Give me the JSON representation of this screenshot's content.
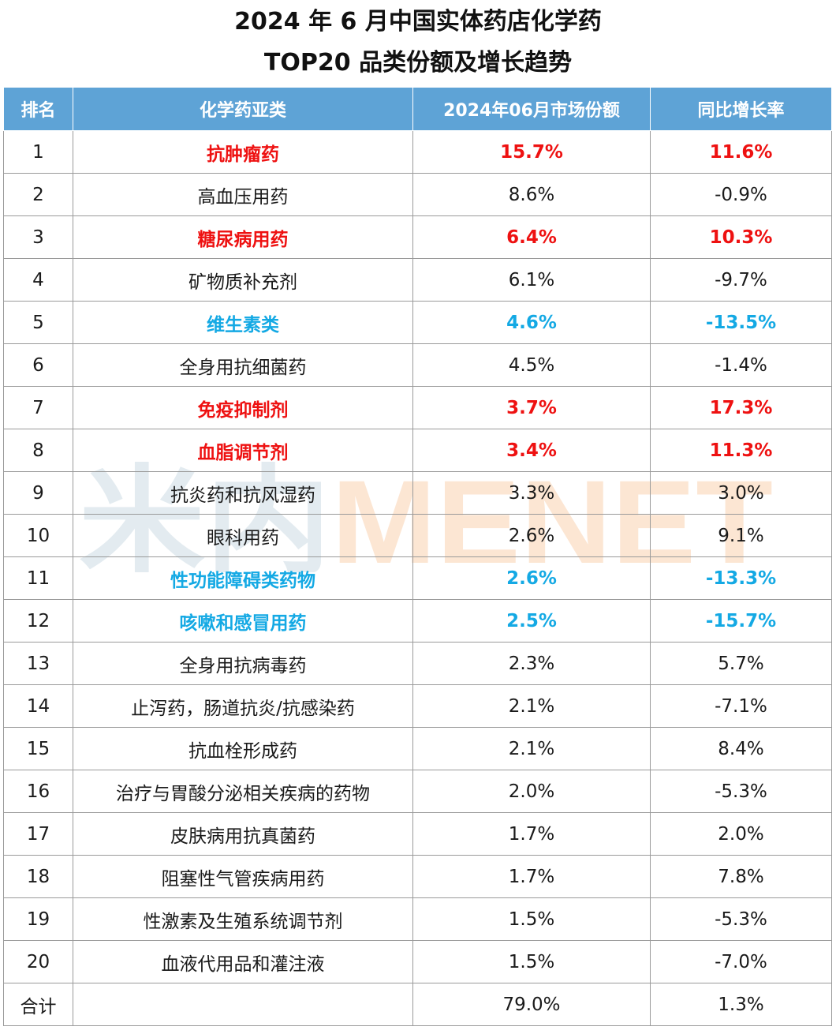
{
  "title_line1": "2024 年 6 月中国实体药店化学药",
  "title_line2": "TOP20 品类份额及增长趋势",
  "watermark_text": "米内MENET",
  "colors": {
    "header_bg": "#5ea3d6",
    "highlight_red": "#ee1111",
    "highlight_blue": "#14a9e4",
    "watermark_blue": "#a9c3d2",
    "watermark_orange": "#f6b27a"
  },
  "chart_data": {
    "type": "table",
    "title": "2024 年 6 月中国实体药店化学药 TOP20 品类份额及增长趋势",
    "columns": [
      "排名",
      "化学药亚类",
      "2024年06月市场份额",
      "同比增长率"
    ],
    "rows": [
      {
        "rank": "1",
        "category": "抗肿瘤药",
        "share": "15.7%",
        "growth": "11.6%",
        "highlight": "red"
      },
      {
        "rank": "2",
        "category": "高血压用药",
        "share": "8.6%",
        "growth": "-0.9%",
        "highlight": ""
      },
      {
        "rank": "3",
        "category": "糖尿病用药",
        "share": "6.4%",
        "growth": "10.3%",
        "highlight": "red"
      },
      {
        "rank": "4",
        "category": "矿物质补充剂",
        "share": "6.1%",
        "growth": "-9.7%",
        "highlight": ""
      },
      {
        "rank": "5",
        "category": "维生素类",
        "share": "4.6%",
        "growth": "-13.5%",
        "highlight": "blue"
      },
      {
        "rank": "6",
        "category": "全身用抗细菌药",
        "share": "4.5%",
        "growth": "-1.4%",
        "highlight": ""
      },
      {
        "rank": "7",
        "category": "免疫抑制剂",
        "share": "3.7%",
        "growth": "17.3%",
        "highlight": "red"
      },
      {
        "rank": "8",
        "category": "血脂调节剂",
        "share": "3.4%",
        "growth": "11.3%",
        "highlight": "red"
      },
      {
        "rank": "9",
        "category": "抗炎药和抗风湿药",
        "share": "3.3%",
        "growth": "3.0%",
        "highlight": ""
      },
      {
        "rank": "10",
        "category": "眼科用药",
        "share": "2.6%",
        "growth": "9.1%",
        "highlight": ""
      },
      {
        "rank": "11",
        "category": "性功能障碍类药物",
        "share": "2.6%",
        "growth": "-13.3%",
        "highlight": "blue"
      },
      {
        "rank": "12",
        "category": "咳嗽和感冒用药",
        "share": "2.5%",
        "growth": "-15.7%",
        "highlight": "blue"
      },
      {
        "rank": "13",
        "category": "全身用抗病毒药",
        "share": "2.3%",
        "growth": "5.7%",
        "highlight": ""
      },
      {
        "rank": "14",
        "category": "止泻药，肠道抗炎/抗感染药",
        "share": "2.1%",
        "growth": "-7.1%",
        "highlight": ""
      },
      {
        "rank": "15",
        "category": "抗血栓形成药",
        "share": "2.1%",
        "growth": "8.4%",
        "highlight": ""
      },
      {
        "rank": "16",
        "category": "治疗与胃酸分泌相关疾病的药物",
        "share": "2.0%",
        "growth": "-5.3%",
        "highlight": ""
      },
      {
        "rank": "17",
        "category": "皮肤病用抗真菌药",
        "share": "1.7%",
        "growth": "2.0%",
        "highlight": ""
      },
      {
        "rank": "18",
        "category": "阻塞性气管疾病用药",
        "share": "1.7%",
        "growth": "7.8%",
        "highlight": ""
      },
      {
        "rank": "19",
        "category": "性激素及生殖系统调节剂",
        "share": "1.5%",
        "growth": "-5.3%",
        "highlight": ""
      },
      {
        "rank": "20",
        "category": "血液代用品和灌注液",
        "share": "1.5%",
        "growth": "-7.0%",
        "highlight": ""
      }
    ],
    "total": {
      "rank": "合计",
      "category": "",
      "share": "79.0%",
      "growth": "1.3%"
    }
  }
}
